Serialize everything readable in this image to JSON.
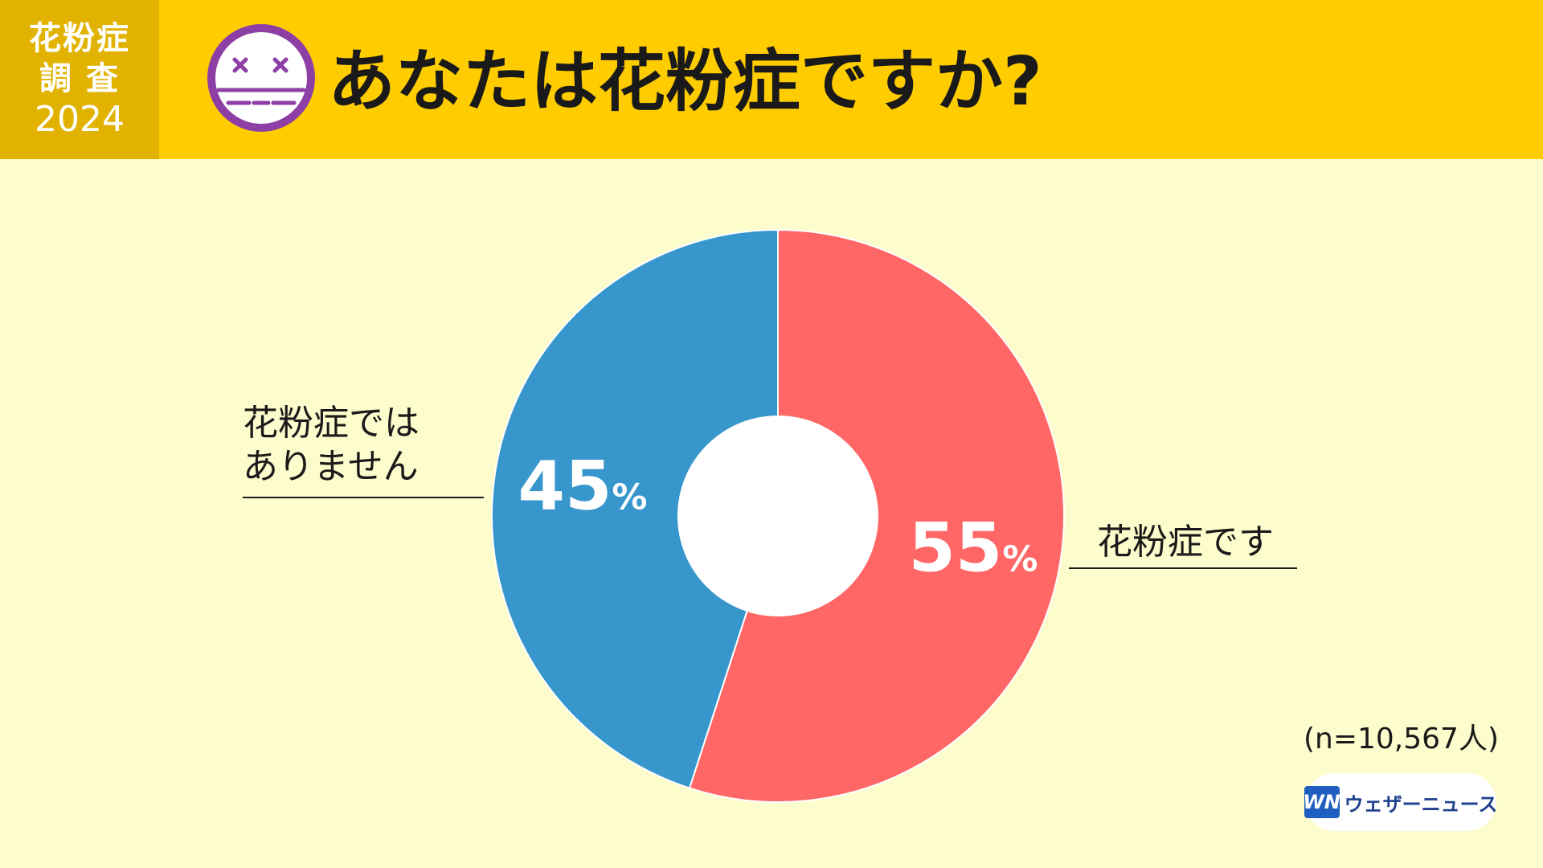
{
  "header": {
    "badge_line1": "花粉症",
    "badge_line2": "調 査",
    "badge_year": "2024",
    "title": "あなたは花粉症ですか?",
    "face_icon": "dizzy-face-icon"
  },
  "colors": {
    "header_bg": "#ffcc00",
    "badge_bg": "#e1b300",
    "page_bg": "#fdfccc",
    "face_purple": "#8e3fa6",
    "yes": "#ff6666",
    "no": "#3797cc"
  },
  "callouts": {
    "yes_label": "花粉症です",
    "no_label_line1": "花粉症では",
    "no_label_line2": "ありません"
  },
  "chart_data": {
    "type": "pie",
    "style": "donut",
    "title": "あなたは花粉症ですか?",
    "categories": [
      "花粉症です",
      "花粉症ではありません"
    ],
    "values": [
      55,
      45
    ],
    "value_labels": [
      "55%",
      "45%"
    ],
    "colors": [
      "#ff6666",
      "#3797cc"
    ],
    "start": "12 o'clock, clockwise"
  },
  "note": "(n=10,567人)",
  "logo": {
    "mark": "WN",
    "text": "ウェザーニュース"
  }
}
